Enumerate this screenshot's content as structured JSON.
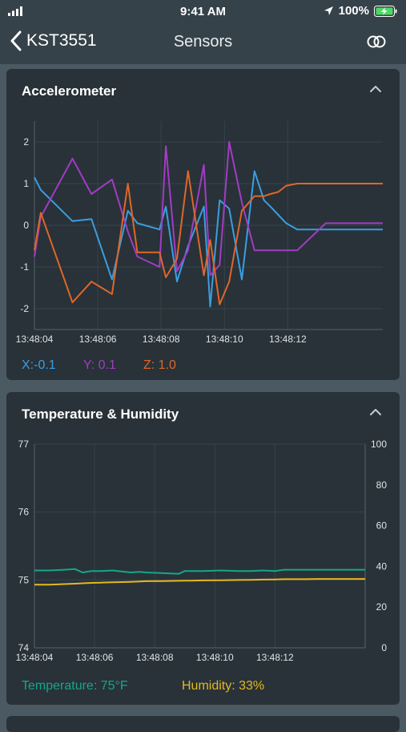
{
  "status_bar": {
    "time": "9:41 AM",
    "battery": "100%"
  },
  "nav": {
    "back_label": "KST3551",
    "title": "Sensors"
  },
  "accelerometer": {
    "title": "Accelerometer",
    "legend": [
      {
        "label": "X:-0.1",
        "color": "#3b9de0"
      },
      {
        "label": "Y: 0.1",
        "color": "#a23cc4"
      },
      {
        "label": "Z: 1.0",
        "color": "#e0662a"
      }
    ]
  },
  "climate": {
    "title": "Temperature & Humidity",
    "legend": [
      {
        "label": "Temperature: 75°F",
        "color": "#17a58c"
      },
      {
        "label": "Humidity: 33%",
        "color": "#e6b81f"
      }
    ]
  },
  "chart_data": [
    {
      "type": "line",
      "title": "Accelerometer",
      "x_tick_labels": [
        "13:48:04",
        "13:48:06",
        "13:48:08",
        "13:48:10",
        "13:48:12"
      ],
      "ylim": [
        -2.5,
        2.5
      ],
      "y_ticks": [
        -2,
        -1,
        0,
        1,
        2
      ],
      "grid": true,
      "x": [
        0,
        0.2,
        1.2,
        1.8,
        2.45,
        2.95,
        3.25,
        3.95,
        4.15,
        4.5,
        4.85,
        5.35,
        5.55,
        5.85,
        6.15,
        6.55,
        6.95,
        7.25,
        7.45,
        7.7,
        7.95,
        8.3,
        9.2,
        10.0,
        10.4,
        11.0
      ],
      "series": [
        {
          "name": "X",
          "color": "#3b9de0",
          "values": [
            1.15,
            0.85,
            0.1,
            0.15,
            -1.3,
            0.35,
            0.05,
            -0.1,
            0.45,
            -1.35,
            -0.5,
            0.45,
            -1.95,
            0.6,
            0.4,
            -1.3,
            1.3,
            0.6,
            0.45,
            0.25,
            0.05,
            -0.1,
            -0.1,
            -0.1,
            -0.1,
            -0.1
          ]
        },
        {
          "name": "Y",
          "color": "#a23cc4",
          "values": [
            -0.75,
            0.2,
            1.6,
            0.75,
            1.1,
            -0.15,
            -0.75,
            -1.0,
            1.9,
            -1.1,
            -0.6,
            1.45,
            -1.2,
            -0.95,
            2.0,
            0.55,
            -0.6,
            -0.6,
            -0.6,
            -0.6,
            -0.6,
            -0.6,
            0.05,
            0.05,
            0.05,
            0.05
          ]
        },
        {
          "name": "Z",
          "color": "#e0662a",
          "values": [
            -0.6,
            0.3,
            -1.85,
            -1.35,
            -1.65,
            1.0,
            -0.65,
            -0.65,
            -1.25,
            -0.8,
            1.3,
            -1.2,
            -0.35,
            -1.9,
            -1.35,
            0.35,
            0.7,
            0.7,
            0.75,
            0.8,
            0.95,
            1.0,
            1.0,
            1.0,
            1.0,
            1.0
          ]
        }
      ]
    },
    {
      "type": "line",
      "title": "Temperature & Humidity",
      "x_tick_labels": [
        "13:48:04",
        "13:48:06",
        "13:48:08",
        "13:48:10",
        "13:48:12"
      ],
      "y_left_ticks": [
        74,
        75,
        76,
        77
      ],
      "ylim_left": [
        74,
        77
      ],
      "y_right_ticks": [
        0,
        20,
        40,
        60,
        80,
        100
      ],
      "ylim_right": [
        0,
        100
      ],
      "grid": true,
      "x": [
        0,
        0.5,
        1.0,
        1.35,
        1.6,
        1.9,
        2.2,
        2.6,
        3.2,
        3.5,
        3.7,
        4.3,
        4.8,
        5.0,
        5.2,
        5.6,
        6.2,
        6.8,
        7.2,
        7.6,
        8.0,
        8.3,
        8.9,
        9.4,
        10.0,
        11.0
      ],
      "series": [
        {
          "name": "Temperature",
          "axis": "left",
          "color": "#17a58c",
          "values": [
            75.14,
            75.14,
            75.15,
            75.16,
            75.11,
            75.13,
            75.13,
            75.14,
            75.11,
            75.12,
            75.11,
            75.1,
            75.09,
            75.13,
            75.13,
            75.13,
            75.14,
            75.13,
            75.13,
            75.14,
            75.13,
            75.15,
            75.15,
            75.15,
            75.15,
            75.15
          ]
        },
        {
          "name": "Humidity",
          "axis": "right",
          "color": "#e6b81f",
          "values": [
            31,
            31,
            31.3,
            31.5,
            31.7,
            31.9,
            32,
            32.2,
            32.4,
            32.6,
            32.7,
            32.8,
            32.9,
            33,
            33,
            33.1,
            33.2,
            33.3,
            33.4,
            33.5,
            33.6,
            33.7,
            33.7,
            33.8,
            33.8,
            33.8
          ]
        }
      ]
    }
  ]
}
